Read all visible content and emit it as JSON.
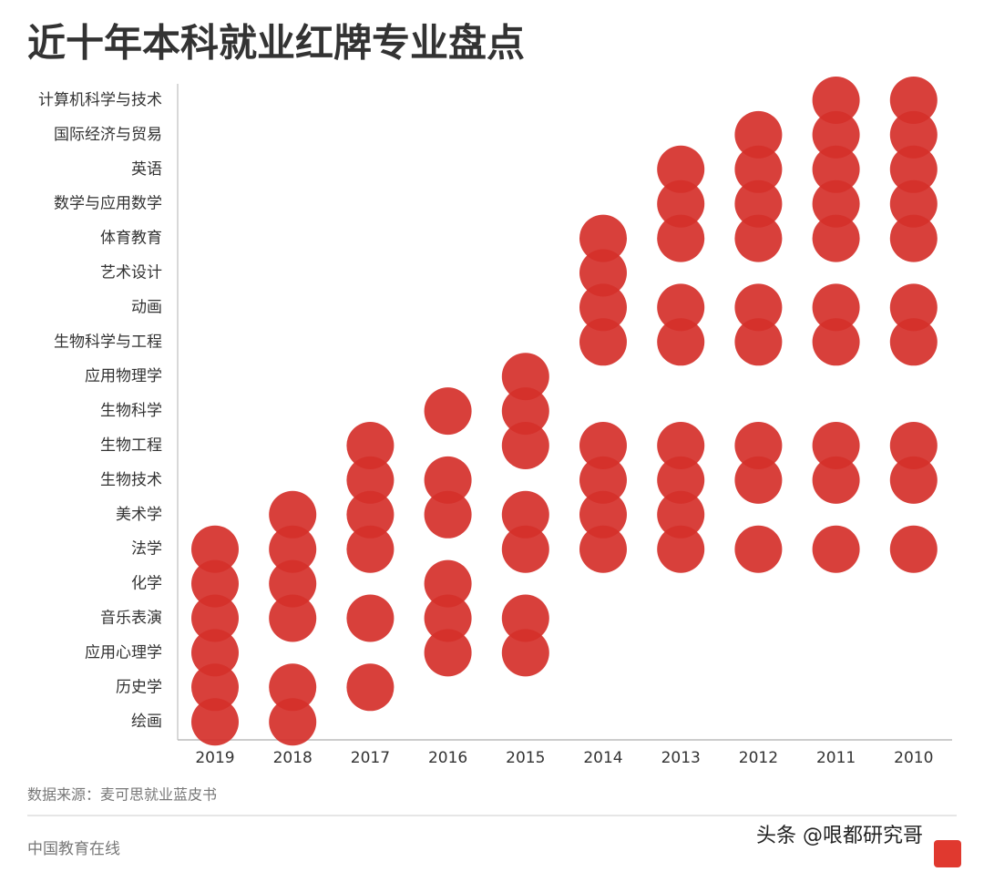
{
  "chart_data": {
    "type": "dot_matrix",
    "title": "近十年本科就业红牌专业盘点",
    "x": [
      "2019",
      "2018",
      "2017",
      "2016",
      "2015",
      "2014",
      "2013",
      "2012",
      "2011",
      "2010"
    ],
    "categories": [
      "计算机科学与技术",
      "国际经济与贸易",
      "英语",
      "数学与应用数学",
      "体育教育",
      "艺术设计",
      "动画",
      "生物科学与工程",
      "应用物理学",
      "生物科学",
      "生物工程",
      "生物技术",
      "美术学",
      "法学",
      "化学",
      "音乐表演",
      "应用心理学",
      "历史学",
      "绘画"
    ],
    "values": [
      [
        0,
        0,
        0,
        0,
        0,
        0,
        0,
        0,
        0,
        0,
        0,
        0,
        0,
        1,
        1,
        1,
        1,
        1,
        1
      ],
      [
        0,
        0,
        0,
        0,
        0,
        0,
        0,
        0,
        0,
        0,
        0,
        0,
        1,
        1,
        1,
        1,
        0,
        1,
        1
      ],
      [
        0,
        0,
        0,
        0,
        0,
        0,
        0,
        0,
        0,
        0,
        1,
        1,
        1,
        1,
        0,
        1,
        0,
        1,
        0
      ],
      [
        0,
        0,
        0,
        0,
        0,
        0,
        0,
        0,
        0,
        1,
        0,
        1,
        1,
        0,
        1,
        1,
        1,
        0,
        0
      ],
      [
        0,
        0,
        0,
        0,
        0,
        0,
        0,
        0,
        1,
        1,
        1,
        0,
        1,
        1,
        0,
        1,
        1,
        0,
        0
      ],
      [
        0,
        0,
        0,
        0,
        1,
        1,
        1,
        1,
        0,
        0,
        1,
        1,
        1,
        1,
        0,
        0,
        0,
        0,
        0
      ],
      [
        0,
        0,
        1,
        1,
        1,
        0,
        1,
        1,
        0,
        0,
        1,
        1,
        1,
        1,
        0,
        0,
        0,
        0,
        0
      ],
      [
        0,
        1,
        1,
        1,
        1,
        0,
        1,
        1,
        0,
        0,
        1,
        1,
        0,
        1,
        0,
        0,
        0,
        0,
        0
      ],
      [
        1,
        1,
        1,
        1,
        1,
        0,
        1,
        1,
        0,
        0,
        1,
        1,
        0,
        1,
        0,
        0,
        0,
        0,
        0
      ],
      [
        1,
        1,
        1,
        1,
        1,
        0,
        1,
        1,
        0,
        0,
        1,
        1,
        0,
        1,
        0,
        0,
        0,
        0,
        0
      ]
    ],
    "color": "#d5302a",
    "source": "数据来源：麦可思就业蓝皮书"
  },
  "footer": {
    "publisher": "中国教育在线",
    "watermark": "头条 @哏都研究哥"
  }
}
